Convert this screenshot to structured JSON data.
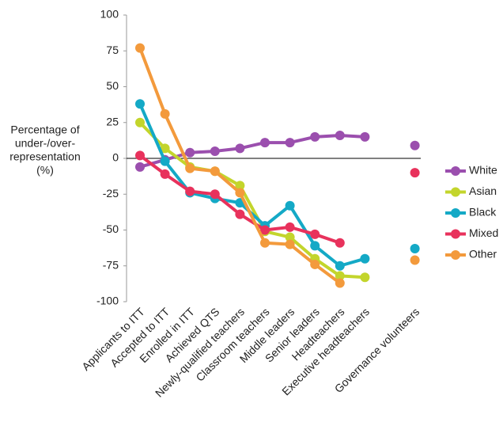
{
  "chart_data": {
    "type": "line",
    "ylabel": [
      "Percentage of",
      "under-/over-",
      "representation",
      "(%)"
    ],
    "categories": [
      "Applicants to ITT",
      "Accepted to ITT",
      "Enrolled in ITT",
      "Achieved QTS",
      "Newly-qualified teachers",
      "Classroom teachers",
      "Middle leaders",
      "Senior leaders",
      "Headteachers",
      "Executive headteachers",
      null,
      "Governance volunteers"
    ],
    "series": [
      {
        "name": "White",
        "color": "#9b4fae",
        "values": [
          -6,
          -1,
          4,
          5,
          7,
          11,
          11,
          15,
          16,
          15,
          null,
          9
        ]
      },
      {
        "name": "Asian",
        "color": "#c3d52c",
        "values": [
          25,
          7,
          -6,
          -9,
          -19,
          -51,
          -55,
          -70,
          -82,
          -83,
          null,
          null
        ]
      },
      {
        "name": "Black",
        "color": "#14a9c6",
        "values": [
          38,
          -2,
          -24,
          -28,
          -31,
          -47,
          -33,
          -61,
          -75,
          -70,
          null,
          -63
        ]
      },
      {
        "name": "Mixed",
        "color": "#e8325c",
        "values": [
          2,
          -11,
          -23,
          -25,
          -39,
          -50,
          -48,
          -53,
          -59,
          null,
          null,
          -10
        ]
      },
      {
        "name": "Other",
        "color": "#f39a3c",
        "values": [
          77,
          31,
          -7,
          -9,
          -24,
          -59,
          -60,
          -74,
          -87,
          null,
          null,
          -71
        ]
      }
    ],
    "ylim": [
      -100,
      100
    ],
    "yticks": [
      -100,
      -75,
      -50,
      -25,
      0,
      25,
      50,
      75,
      100
    ],
    "legend": "right"
  }
}
